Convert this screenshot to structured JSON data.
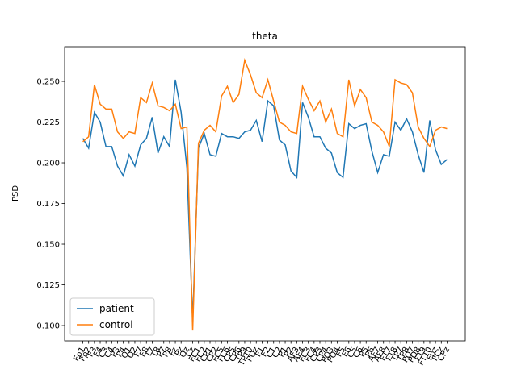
{
  "chart_data": {
    "type": "line",
    "title": "theta",
    "y_label": "PSD",
    "categories": [
      "Fp1",
      "Fp2",
      "F3",
      "F4",
      "C3",
      "C4",
      "P3",
      "P4",
      "O1",
      "O2",
      "F7",
      "F8",
      "T7",
      "T8",
      "P7",
      "P8",
      "Fz",
      "Pz",
      "Oz",
      "Cz",
      "FC1",
      "FC2",
      "CP1",
      "CP2",
      "FC5",
      "FC6",
      "CP5",
      "CP6",
      "TP9",
      "TP10",
      "POz",
      "F1",
      "F2",
      "C1",
      "C2",
      "P1",
      "P2",
      "AF3",
      "AF4",
      "FC3",
      "FC4",
      "CP3",
      "CP4",
      "PO3",
      "PO4",
      "F5",
      "F6",
      "C5",
      "C6",
      "P5",
      "P6",
      "AF7",
      "AF8",
      "FT7",
      "FT8",
      "TP7",
      "TP8",
      "PO7",
      "PO8",
      "FT9",
      "FT10",
      "Fpz",
      "FCz",
      "CPz"
    ],
    "series": [
      {
        "name": "patient",
        "color": "#1f77b4",
        "values": [
          0.215,
          0.209,
          0.231,
          0.225,
          0.21,
          0.21,
          0.198,
          0.192,
          0.205,
          0.198,
          0.211,
          0.215,
          0.228,
          0.206,
          0.216,
          0.21,
          0.251,
          0.231,
          0.197,
          0.103,
          0.209,
          0.218,
          0.205,
          0.204,
          0.218,
          0.216,
          0.216,
          0.215,
          0.219,
          0.22,
          0.226,
          0.213,
          0.238,
          0.235,
          0.214,
          0.211,
          0.195,
          0.191,
          0.237,
          0.228,
          0.216,
          0.216,
          0.209,
          0.206,
          0.194,
          0.191,
          0.224,
          0.221,
          0.223,
          0.224,
          0.207,
          0.194,
          0.205,
          0.204,
          0.225,
          0.22,
          0.227,
          0.219,
          0.205,
          0.194,
          0.226,
          0.208,
          0.199,
          0.202
        ]
      },
      {
        "name": "control",
        "color": "#ff7f0e",
        "values": [
          0.213,
          0.216,
          0.248,
          0.236,
          0.233,
          0.233,
          0.219,
          0.215,
          0.219,
          0.218,
          0.24,
          0.237,
          0.249,
          0.235,
          0.234,
          0.232,
          0.236,
          0.221,
          0.222,
          0.097,
          0.212,
          0.22,
          0.223,
          0.219,
          0.241,
          0.247,
          0.237,
          0.242,
          0.263,
          0.254,
          0.243,
          0.24,
          0.251,
          0.238,
          0.225,
          0.223,
          0.219,
          0.218,
          0.247,
          0.239,
          0.232,
          0.238,
          0.225,
          0.233,
          0.218,
          0.216,
          0.251,
          0.235,
          0.245,
          0.24,
          0.225,
          0.223,
          0.219,
          0.21,
          0.251,
          0.249,
          0.248,
          0.243,
          0.222,
          0.215,
          0.21,
          0.22,
          0.222,
          0.221
        ]
      }
    ],
    "xlim": [
      -3.15,
      66.15
    ],
    "ylim": [
      0.0906,
      0.2713
    ],
    "yticks": [
      {
        "value": 0.1,
        "label": "0.100"
      },
      {
        "value": 0.125,
        "label": "0.125"
      },
      {
        "value": 0.15,
        "label": "0.150"
      },
      {
        "value": 0.175,
        "label": "0.175"
      },
      {
        "value": 0.2,
        "label": "0.200"
      },
      {
        "value": 0.225,
        "label": "0.225"
      },
      {
        "value": 0.25,
        "label": "0.250"
      }
    ],
    "legend": "lower left"
  }
}
